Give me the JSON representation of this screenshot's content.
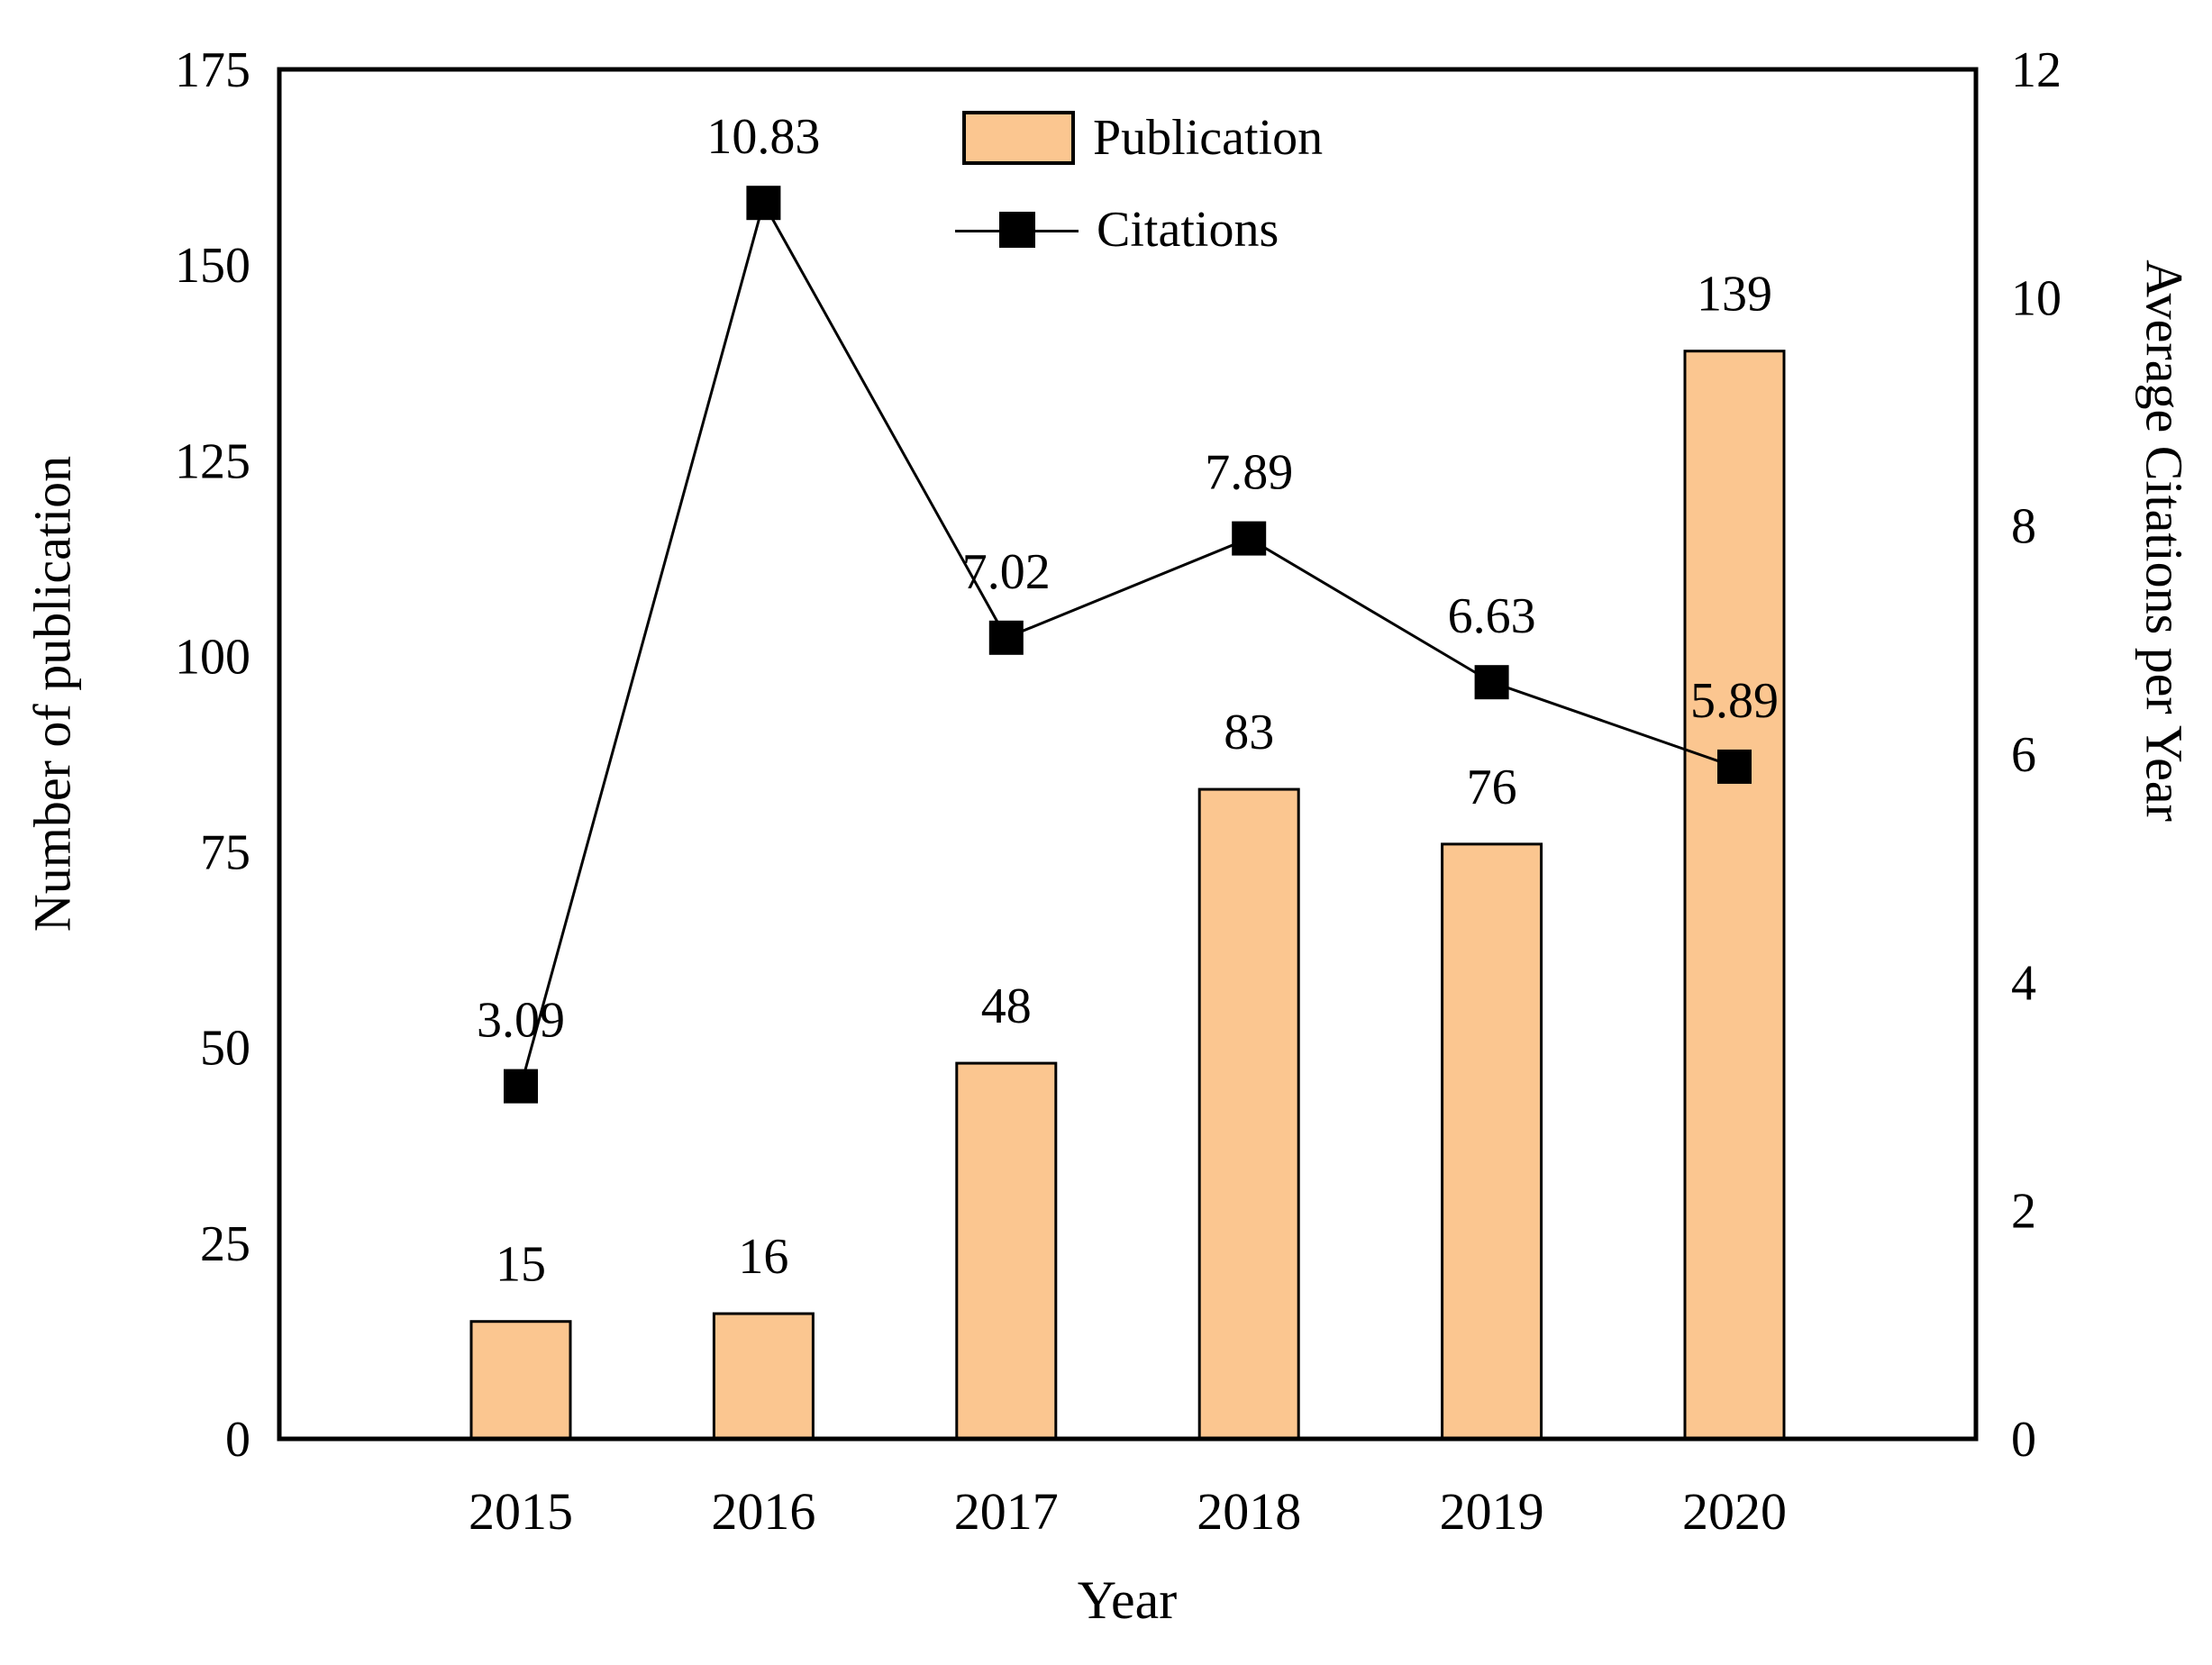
{
  "colors": {
    "bar_fill": "#FBC690",
    "bar_stroke": "#000000",
    "line_color": "#000000",
    "marker_color": "#000000",
    "axis_color": "#000000",
    "background": "#FFFFFF"
  },
  "chart_data": {
    "type": "combo-bar-line",
    "categories": [
      "2015",
      "2016",
      "2017",
      "2018",
      "2019",
      "2020"
    ],
    "series": [
      {
        "name": "Publication",
        "type": "bar",
        "axis": "left",
        "values": [
          15,
          16,
          48,
          83,
          76,
          139
        ],
        "labels": [
          "15",
          "16",
          "48",
          "83",
          "76",
          "139"
        ]
      },
      {
        "name": "Citations",
        "type": "line",
        "axis": "right",
        "values": [
          3.09,
          10.83,
          7.02,
          7.89,
          6.63,
          5.89
        ],
        "labels": [
          "3.09",
          "10.83",
          "7.02",
          "7.89",
          "6.63",
          "5.89"
        ]
      }
    ],
    "left_axis": {
      "label": "Number of publication",
      "min": 0,
      "max": 175,
      "tick_step": 25,
      "ticks": [
        0,
        25,
        50,
        75,
        100,
        125,
        150,
        175
      ]
    },
    "right_axis": {
      "label": "Average Citations per Year",
      "min": 0,
      "max": 12,
      "tick_step": 2,
      "ticks": [
        0,
        2,
        4,
        6,
        8,
        10,
        12
      ]
    },
    "x_axis": {
      "label": "Year"
    },
    "grid": false,
    "legend_position": "top-center-inside",
    "data_labels": true
  }
}
